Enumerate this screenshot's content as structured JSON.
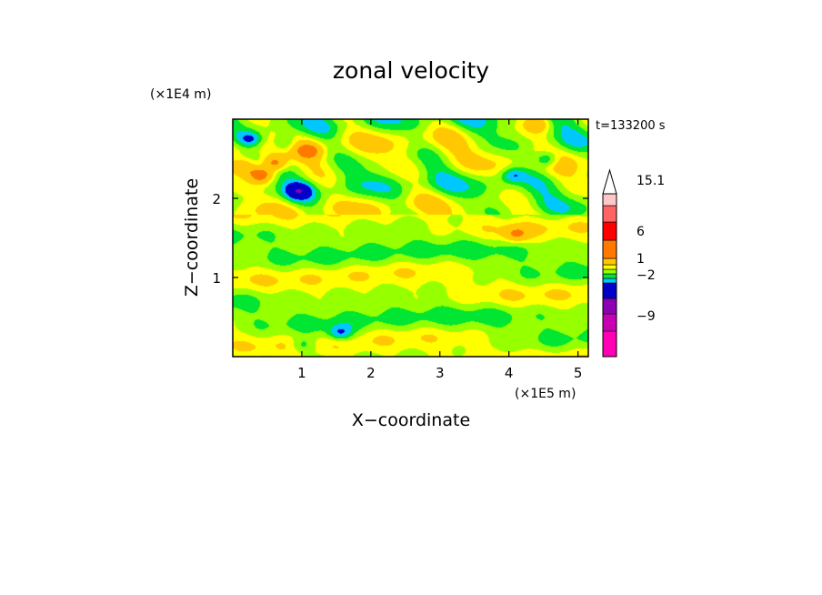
{
  "chart_data": {
    "type": "heatmap",
    "title": "zonal velocity",
    "xlabel": "X−coordinate",
    "ylabel": "Z−coordinate",
    "x_unit": "(×1E5 m)",
    "y_unit": "(×1E4 m)",
    "time_label": "t=133200 s",
    "xlim": [
      0,
      5.15
    ],
    "ylim": [
      0,
      3.0
    ],
    "x_ticks": [
      "1",
      "2",
      "3",
      "4",
      "5"
    ],
    "y_ticks": [
      "1",
      "2"
    ],
    "x_tick_values": [
      1,
      2,
      3,
      4,
      5
    ],
    "y_tick_values": [
      1,
      2
    ],
    "colorbar": {
      "labels": [
        "15.1",
        "6",
        "1",
        "−2",
        "−9"
      ],
      "label_values": [
        15.1,
        6,
        1,
        -2,
        -9
      ],
      "levels": [
        -15,
        -9,
        -5,
        -2,
        -1,
        0,
        1,
        2,
        4,
        6,
        9,
        12,
        15.1
      ],
      "colors": [
        "#ff00b4",
        "#c800b4",
        "#8c00b4",
        "#0000c8",
        "#00c8ff",
        "#00e632",
        "#96ff00",
        "#ffff00",
        "#ffc800",
        "#ff7800",
        "#ff0000",
        "#ff6464",
        "#ffc8c8"
      ],
      "extend_max": true
    },
    "features": [
      {
        "x": 4.55,
        "y": 2.5,
        "value": -3.5
      },
      {
        "x": 4.05,
        "y": 2.3,
        "value": -2.5
      },
      {
        "x": 0.95,
        "y": 2.1,
        "value": -3.5
      },
      {
        "x": 0.4,
        "y": 2.3,
        "value": 5.0
      },
      {
        "x": 0.15,
        "y": 2.4,
        "value": 3.5
      },
      {
        "x": 0.6,
        "y": 2.45,
        "value": 4.5
      },
      {
        "x": 0.75,
        "y": 2.7,
        "value": -2.5
      },
      {
        "x": 0.25,
        "y": 2.75,
        "value": -3.0
      },
      {
        "x": 1.1,
        "y": 2.6,
        "value": 3.0
      },
      {
        "x": 4.4,
        "y": 2.95,
        "value": 3.0
      },
      {
        "x": 4.1,
        "y": 1.55,
        "value": 3.0
      },
      {
        "x": 1.55,
        "y": 0.3,
        "value": -3.0
      },
      {
        "x": 1.0,
        "y": 0.15,
        "value": -2.0
      }
    ]
  }
}
